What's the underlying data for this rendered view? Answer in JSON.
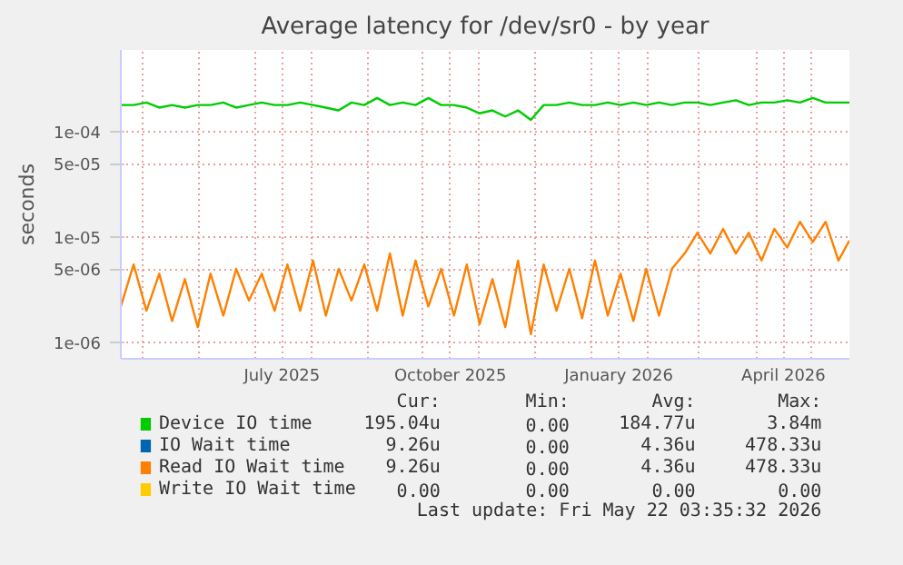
{
  "chart_data": {
    "type": "line",
    "title": "Average latency for /dev/sr0 - by year",
    "ylabel": "seconds",
    "log": "y",
    "grid": true,
    "legend": "bottom",
    "line_style": "solid",
    "marker": "none",
    "xlim": [
      "2025-04-19",
      "2026-05-22"
    ],
    "xticks": [
      {
        "value": "2025-05-01",
        "label": null
      },
      {
        "value": "2025-06-01",
        "label": null
      },
      {
        "value": "2025-07-01",
        "label": null
      },
      {
        "value": "2025-07-16",
        "label": "July 2025"
      },
      {
        "value": "2025-08-01",
        "label": null
      },
      {
        "value": "2025-09-01",
        "label": null
      },
      {
        "value": "2025-10-01",
        "label": null
      },
      {
        "value": "2025-10-16",
        "label": "October 2025"
      },
      {
        "value": "2025-11-01",
        "label": null
      },
      {
        "value": "2025-12-01",
        "label": null
      },
      {
        "value": "2026-01-01",
        "label": null
      },
      {
        "value": "2026-01-16",
        "label": "January 2026"
      },
      {
        "value": "2026-02-01",
        "label": null
      },
      {
        "value": "2026-03-01",
        "label": null
      },
      {
        "value": "2026-04-01",
        "label": null
      },
      {
        "value": "2026-04-16",
        "label": "April 2026"
      },
      {
        "value": "2026-05-01",
        "label": null
      }
    ],
    "ylim": [
      7e-07,
      0.0006
    ],
    "yticks": [
      {
        "value": 1e-06,
        "label": "1e-06"
      },
      {
        "value": 5e-06,
        "label": "5e-06"
      },
      {
        "value": 1e-05,
        "label": "1e-05"
      },
      {
        "value": 5e-05,
        "label": "5e-05"
      },
      {
        "value": 0.0001,
        "label": "1e-04"
      }
    ],
    "x": [
      "2025-04-19",
      "2025-04-26",
      "2025-05-03",
      "2025-05-10",
      "2025-05-17",
      "2025-05-24",
      "2025-05-31",
      "2025-06-07",
      "2025-06-14",
      "2025-06-21",
      "2025-06-28",
      "2025-07-05",
      "2025-07-12",
      "2025-07-19",
      "2025-07-26",
      "2025-08-02",
      "2025-08-09",
      "2025-08-16",
      "2025-08-23",
      "2025-08-30",
      "2025-09-06",
      "2025-09-13",
      "2025-09-20",
      "2025-09-27",
      "2025-10-04",
      "2025-10-11",
      "2025-10-18",
      "2025-10-25",
      "2025-11-01",
      "2025-11-08",
      "2025-11-15",
      "2025-11-22",
      "2025-11-29",
      "2025-12-06",
      "2025-12-13",
      "2025-12-20",
      "2025-12-27",
      "2026-01-03",
      "2026-01-10",
      "2026-01-17",
      "2026-01-24",
      "2026-01-31",
      "2026-02-07",
      "2026-02-14",
      "2026-02-21",
      "2026-02-28",
      "2026-03-07",
      "2026-03-14",
      "2026-03-21",
      "2026-03-28",
      "2026-04-04",
      "2026-04-11",
      "2026-04-18",
      "2026-04-25",
      "2026-05-02",
      "2026-05-09",
      "2026-05-16",
      "2026-05-22"
    ],
    "series": [
      {
        "name": "Device IO time",
        "color": "#00cc00",
        "values": [
          0.00018,
          0.00018,
          0.00019,
          0.00017,
          0.00018,
          0.00017,
          0.00018,
          0.00018,
          0.00019,
          0.00017,
          0.00018,
          0.00019,
          0.00018,
          0.00018,
          0.00019,
          0.00018,
          0.00017,
          0.00016,
          0.00019,
          0.00018,
          0.00021,
          0.00018,
          0.00019,
          0.00018,
          0.00021,
          0.00018,
          0.00018,
          0.00017,
          0.00015,
          0.00016,
          0.00014,
          0.00016,
          0.00013,
          0.00018,
          0.00018,
          0.00019,
          0.00018,
          0.00018,
          0.00019,
          0.00018,
          0.00019,
          0.00018,
          0.00019,
          0.00018,
          0.00019,
          0.00019,
          0.00018,
          0.00019,
          0.0002,
          0.00018,
          0.00019,
          0.00019,
          0.0002,
          0.00019,
          0.00021,
          0.00019,
          0.00019,
          0.00019
        ]
      },
      {
        "name": "IO Wait time",
        "color": "#0066b3",
        "values": [
          null,
          null,
          null,
          null,
          null,
          null,
          null,
          null,
          null,
          null,
          null,
          null,
          null,
          null,
          null,
          null,
          null,
          null,
          null,
          null,
          null,
          null,
          null,
          null,
          null,
          null,
          null,
          null,
          null,
          null,
          null,
          null,
          null,
          null,
          null,
          null,
          null,
          null,
          null,
          null,
          null,
          null,
          null,
          null,
          null,
          null,
          null,
          null,
          null,
          null,
          null,
          null,
          null,
          null,
          null,
          null,
          null,
          null
        ]
      },
      {
        "name": "Read IO Wait time",
        "color": "#ff8000",
        "values": [
          2.2e-06,
          5.5e-06,
          2e-06,
          4.5e-06,
          1.6e-06,
          4e-06,
          1.4e-06,
          4.5e-06,
          1.8e-06,
          5e-06,
          2.5e-06,
          4.5e-06,
          2e-06,
          5.5e-06,
          2e-06,
          6e-06,
          1.8e-06,
          5e-06,
          2.5e-06,
          5.5e-06,
          2e-06,
          7e-06,
          1.8e-06,
          6e-06,
          2.2e-06,
          5e-06,
          1.8e-06,
          5.5e-06,
          1.5e-06,
          4e-06,
          1.4e-06,
          6e-06,
          1.2e-06,
          5.5e-06,
          2e-06,
          5e-06,
          1.7e-06,
          6e-06,
          1.8e-06,
          4.5e-06,
          1.6e-06,
          5e-06,
          1.8e-06,
          5e-06,
          7e-06,
          1.1e-05,
          7e-06,
          1.2e-05,
          7e-06,
          1.1e-05,
          6e-06,
          1.2e-05,
          8e-06,
          1.4e-05,
          9e-06,
          1.4e-05,
          6e-06,
          9.3e-06
        ]
      },
      {
        "name": "Write IO Wait time",
        "color": "#ffcc00",
        "values": [
          null,
          null,
          null,
          null,
          null,
          null,
          null,
          null,
          null,
          null,
          null,
          null,
          null,
          null,
          null,
          null,
          null,
          null,
          null,
          null,
          null,
          null,
          null,
          null,
          null,
          null,
          null,
          null,
          null,
          null,
          null,
          null,
          null,
          null,
          null,
          null,
          null,
          null,
          null,
          null,
          null,
          null,
          null,
          null,
          null,
          null,
          null,
          null,
          null,
          null,
          null,
          null,
          null,
          null,
          null,
          null,
          null,
          null
        ]
      }
    ],
    "annotations": [
      "Cur:",
      "Min:",
      "Avg:",
      "Max:",
      "195.04u",
      "0.00",
      "184.77u",
      "3.84m",
      "9.26u",
      "0.00",
      "4.36u",
      "478.33u",
      "9.26u",
      "0.00",
      "4.36u",
      "478.33u",
      "0.00",
      "0.00",
      "0.00",
      "0.00",
      "Last update: Fri May 22 03:35:32 2026"
    ]
  }
}
